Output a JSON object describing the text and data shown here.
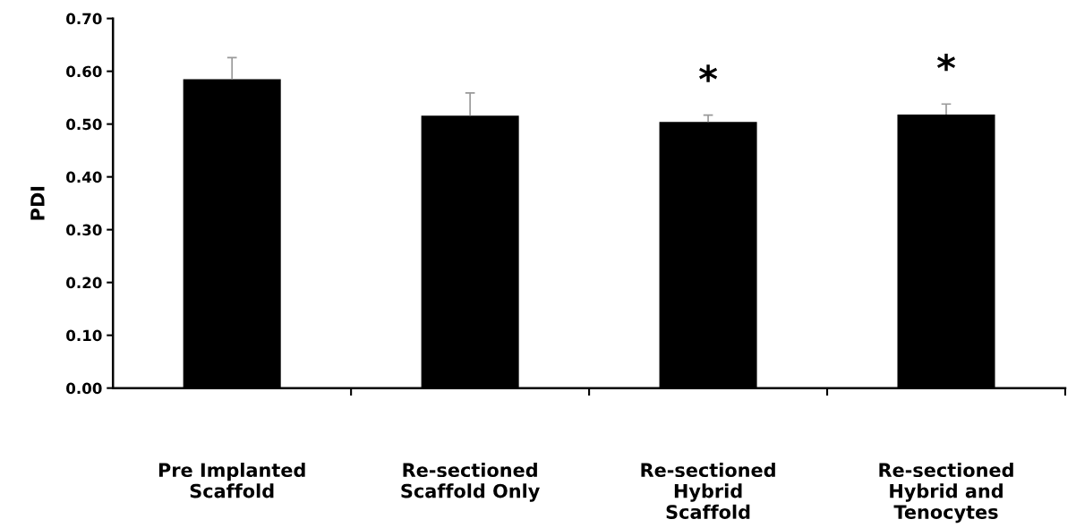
{
  "chart_data": {
    "type": "bar",
    "ylabel": "PDI",
    "categories": [
      "Pre Implanted\nScaffold",
      "Re-sectioned\nScaffold Only",
      "Re-sectioned\nHybrid\nScaffold",
      "Re-sectioned\nHybrid and\nTenocytes"
    ],
    "values": [
      0.585,
      0.516,
      0.504,
      0.518
    ],
    "errors": [
      [
        0.585,
        0.626
      ],
      [
        0.516,
        0.559
      ],
      [
        0.504,
        0.517
      ],
      [
        0.518,
        0.538
      ]
    ],
    "color": "#000000",
    "ylim": [
      0,
      0.7
    ],
    "yticks": [
      {
        "value": 0,
        "label": "0.00"
      },
      {
        "value": 0.1,
        "label": "0.10"
      },
      {
        "value": 0.2,
        "label": "0.20"
      },
      {
        "value": 0.3,
        "label": "0.30"
      },
      {
        "value": 0.4,
        "label": "0.40"
      },
      {
        "value": 0.5,
        "label": "0.50"
      },
      {
        "value": 0.6,
        "label": "0.60"
      },
      {
        "value": 0.7,
        "label": "0.70"
      }
    ],
    "grid": false,
    "value_labels": [
      null,
      null,
      "*",
      "*"
    ]
  }
}
